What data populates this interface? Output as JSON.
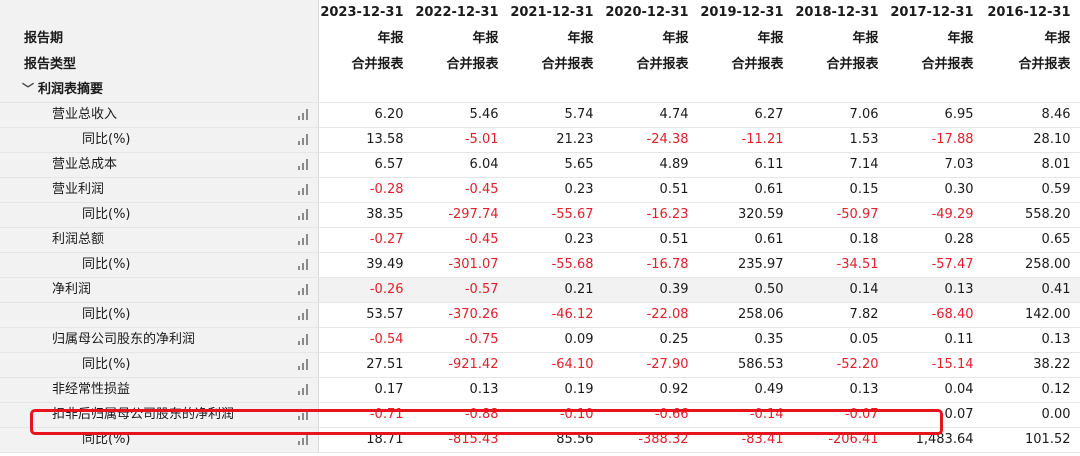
{
  "header": {
    "dates": [
      "2023-12-31",
      "2022-12-31",
      "2021-12-31",
      "2020-12-31",
      "2019-12-31",
      "2018-12-31",
      "2017-12-31",
      "2016-12-31"
    ],
    "report_period_label": "报告期",
    "report_period": [
      "年报",
      "年报",
      "年报",
      "年报",
      "年报",
      "年报",
      "年报",
      "年报"
    ],
    "report_type_label": "报告类型",
    "report_type": [
      "合并报表",
      "合并报表",
      "合并报表",
      "合并报表",
      "合并报表",
      "合并报表",
      "合并报表",
      "合并报表"
    ]
  },
  "section": {
    "label": "利润表摘要",
    "caret": "﹀"
  },
  "rows": [
    {
      "label": "营业总收入",
      "level": 1,
      "values": [
        "6.20",
        "5.46",
        "5.74",
        "4.74",
        "6.27",
        "7.06",
        "6.95",
        "8.46"
      ]
    },
    {
      "label": "同比(%)",
      "level": 2,
      "values": [
        "13.58",
        "-5.01",
        "21.23",
        "-24.38",
        "-11.21",
        "1.53",
        "-17.88",
        "28.10"
      ]
    },
    {
      "label": "营业总成本",
      "level": 1,
      "values": [
        "6.57",
        "6.04",
        "5.65",
        "4.89",
        "6.11",
        "7.14",
        "7.03",
        "8.01"
      ]
    },
    {
      "label": "营业利润",
      "level": 1,
      "values": [
        "-0.28",
        "-0.45",
        "0.23",
        "0.51",
        "0.61",
        "0.15",
        "0.30",
        "0.59"
      ]
    },
    {
      "label": "同比(%)",
      "level": 2,
      "values": [
        "38.35",
        "-297.74",
        "-55.67",
        "-16.23",
        "320.59",
        "-50.97",
        "-49.29",
        "558.20"
      ]
    },
    {
      "label": "利润总额",
      "level": 1,
      "values": [
        "-0.27",
        "-0.45",
        "0.23",
        "0.51",
        "0.61",
        "0.18",
        "0.28",
        "0.65"
      ]
    },
    {
      "label": "同比(%)",
      "level": 2,
      "values": [
        "39.49",
        "-301.07",
        "-55.68",
        "-16.78",
        "235.97",
        "-34.51",
        "-57.47",
        "258.00"
      ]
    },
    {
      "label": "净利润",
      "level": 1,
      "values": [
        "-0.26",
        "-0.57",
        "0.21",
        "0.39",
        "0.50",
        "0.14",
        "0.13",
        "0.41"
      ]
    },
    {
      "label": "同比(%)",
      "level": 2,
      "values": [
        "53.57",
        "-370.26",
        "-46.12",
        "-22.08",
        "258.06",
        "7.82",
        "-68.40",
        "142.00"
      ]
    },
    {
      "label": "归属母公司股东的净利润",
      "level": 1,
      "values": [
        "-0.54",
        "-0.75",
        "0.09",
        "0.25",
        "0.35",
        "0.05",
        "0.11",
        "0.13"
      ]
    },
    {
      "label": "同比(%)",
      "level": 2,
      "values": [
        "27.51",
        "-921.42",
        "-64.10",
        "-27.90",
        "586.53",
        "-52.20",
        "-15.14",
        "38.22"
      ]
    },
    {
      "label": "非经常性损益",
      "level": 1,
      "values": [
        "0.17",
        "0.13",
        "0.19",
        "0.92",
        "0.49",
        "0.13",
        "0.04",
        "0.12"
      ]
    },
    {
      "label": "扣非后归属母公司股东的净利润",
      "level": 1,
      "values": [
        "-0.71",
        "-0.88",
        "-0.10",
        "-0.66",
        "-0.14",
        "-0.07",
        "0.07",
        "0.00"
      ]
    },
    {
      "label": "同比(%)",
      "level": 2,
      "values": [
        "18.71",
        "-815.43",
        "85.56",
        "-388.32",
        "-83.41",
        "-206.41",
        "1,483.64",
        "101.52"
      ]
    }
  ],
  "colors": {
    "negative": "#e0202b",
    "highlight_border": "#e8141d",
    "label_bg": "#f2f2f2"
  },
  "icons": {
    "row_chart": "bar-chart-icon"
  }
}
